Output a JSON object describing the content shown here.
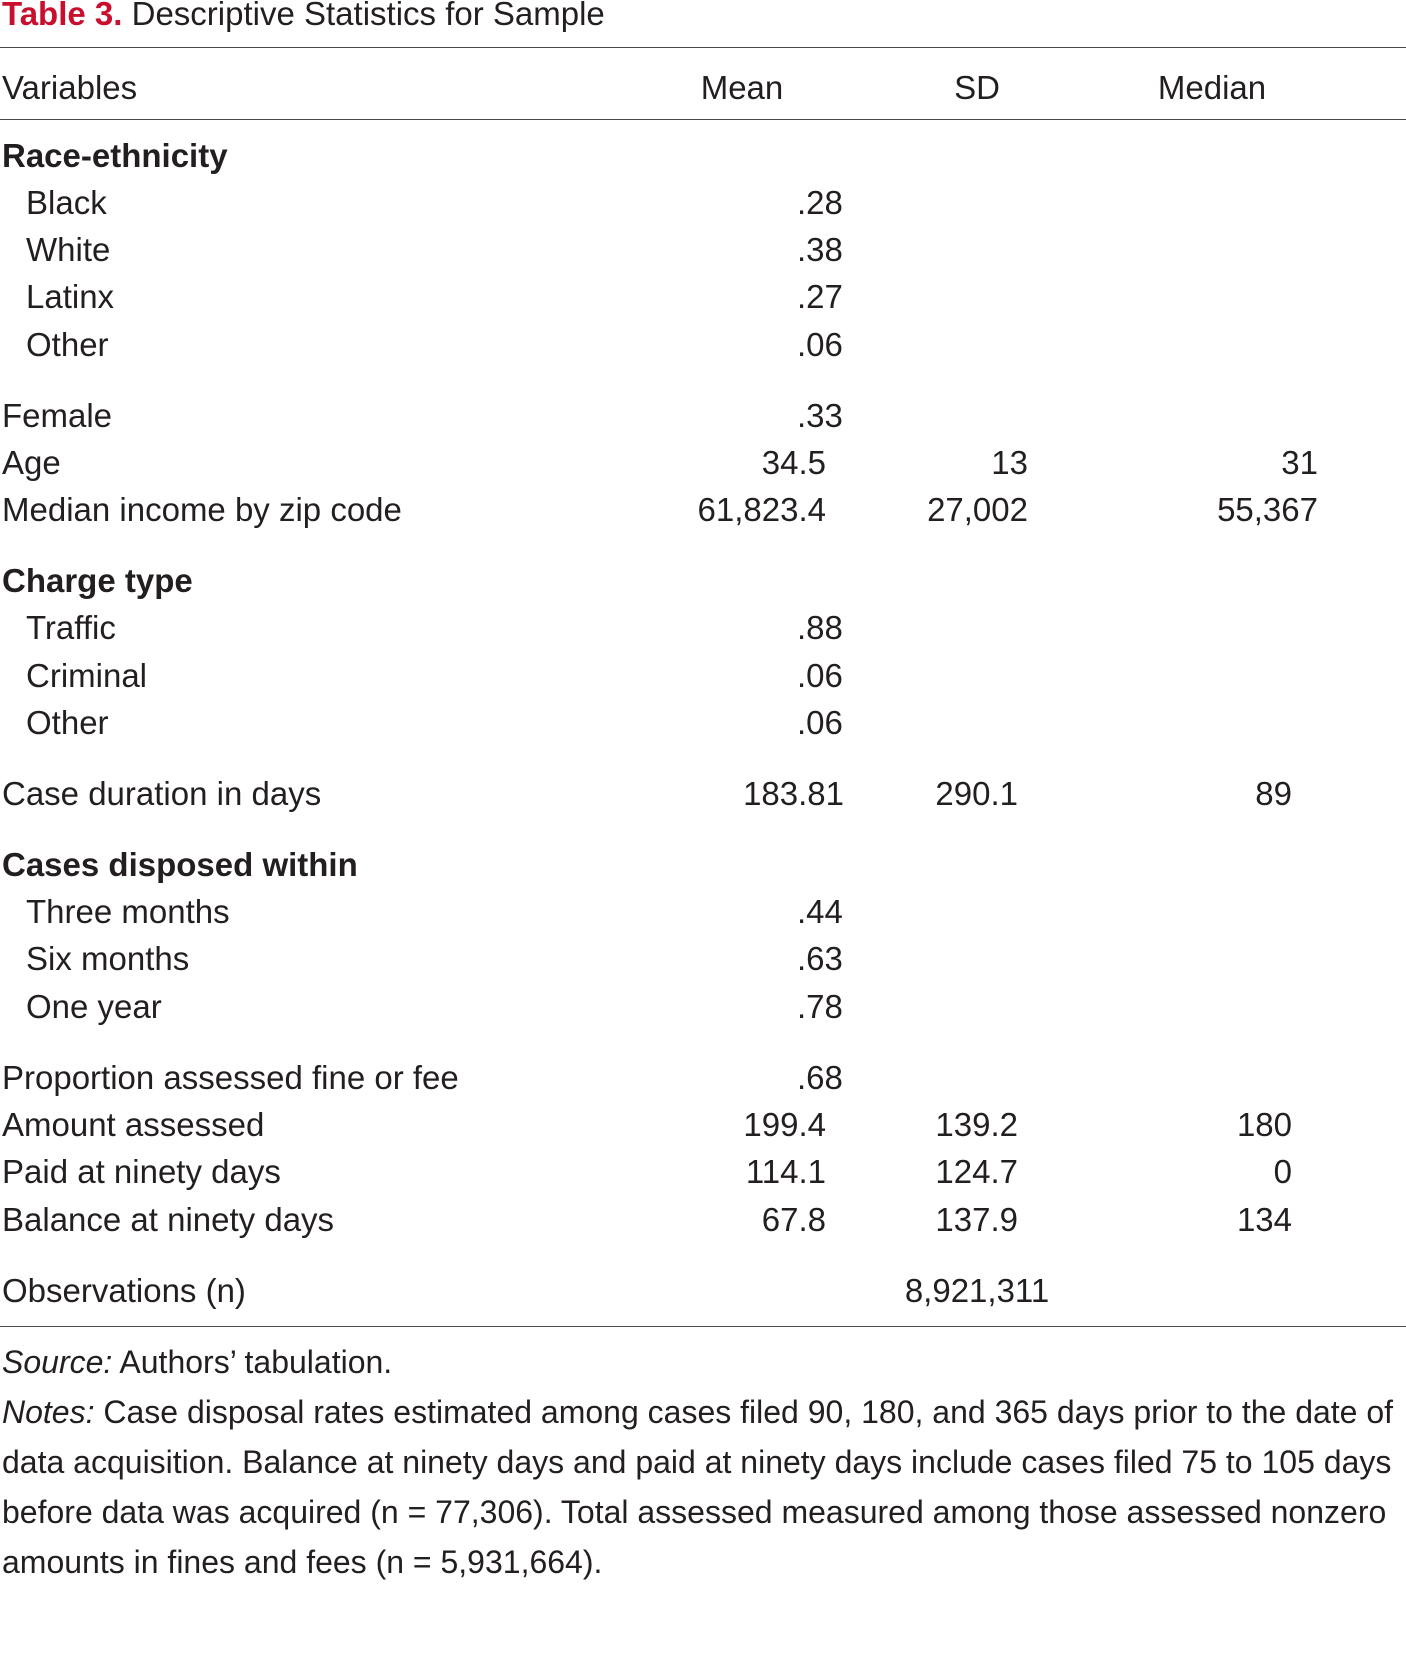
{
  "title": {
    "label": "Table 3.",
    "text": "Descriptive Statistics for Sample"
  },
  "columns": {
    "variables": "Variables",
    "mean": "Mean",
    "sd": "SD",
    "median": "Median"
  },
  "rows": {
    "race_heading": "Race-ethnicity",
    "black": {
      "label": "Black",
      "mean": ".28"
    },
    "white": {
      "label": "White",
      "mean": ".38"
    },
    "latinx": {
      "label": "Latinx",
      "mean": ".27"
    },
    "race_other": {
      "label": "Other",
      "mean": ".06"
    },
    "female": {
      "label": "Female",
      "mean": ".33"
    },
    "age": {
      "label": "Age",
      "mean": "34.5",
      "sd": "13",
      "median": "31"
    },
    "income": {
      "label": "Median income by zip code",
      "mean": "61,823.4",
      "sd": "27,002",
      "median": "55,367"
    },
    "charge_heading": "Charge type",
    "traffic": {
      "label": "Traffic",
      "mean": ".88"
    },
    "criminal": {
      "label": "Criminal",
      "mean": ".06"
    },
    "charge_other": {
      "label": "Other",
      "mean": ".06"
    },
    "duration": {
      "label": "Case duration in days",
      "mean": "183.81",
      "sd": "290.1",
      "median": "89"
    },
    "disposed_heading": "Cases disposed within",
    "three_months": {
      "label": "Three months",
      "mean": ".44"
    },
    "six_months": {
      "label": "Six months",
      "mean": ".63"
    },
    "one_year": {
      "label": "One year",
      "mean": ".78"
    },
    "proportion_fee": {
      "label": "Proportion assessed fine or fee",
      "mean": ".68"
    },
    "amount": {
      "label": "Amount assessed",
      "mean": "199.4",
      "sd": "139.2",
      "median": "180"
    },
    "paid": {
      "label": "Paid at ninety days",
      "mean": "114.1",
      "sd": "124.7",
      "median": "0"
    },
    "balance": {
      "label": "Balance at ninety days",
      "mean": "67.8",
      "sd": "137.9",
      "median": "134"
    },
    "observations": {
      "label": "Observations (n)",
      "value": "8,921,311"
    }
  },
  "source": {
    "label": "Source:",
    "text": "Authors’ tabulation."
  },
  "notes": {
    "label": "Notes:",
    "text": "Case disposal rates estimated among cases filed 90, 180, and 365 days prior to the date of data acquisition. Balance at ninety days and paid at ninety days include cases filed 75 to 105 days before data was acquired (n = 77,306). Total assessed measured among those assessed nonzero amounts in fines and fees (n = 5,931,664)."
  }
}
